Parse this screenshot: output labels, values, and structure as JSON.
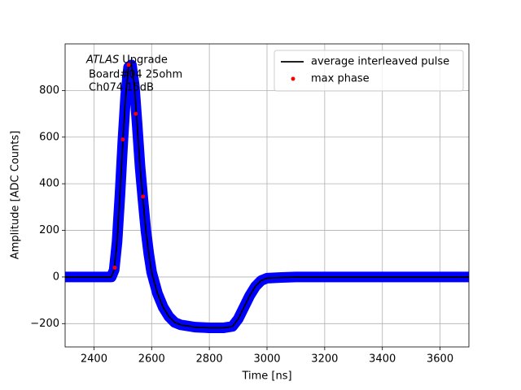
{
  "chart_data": {
    "type": "line",
    "x_label": "Time [ns]",
    "y_label": "Amplitude [ADC Counts]",
    "annotations": [
      "ATLAS",
      "Upgrade",
      "Board#04 25ohm",
      "Ch074 15dB"
    ],
    "x": [
      2300,
      2460,
      2470,
      2480,
      2490,
      2500,
      2510,
      2520,
      2530,
      2540,
      2550,
      2560,
      2570,
      2580,
      2590,
      2600,
      2620,
      2640,
      2660,
      2680,
      2700,
      2750,
      2800,
      2850,
      2880,
      2900,
      2920,
      2940,
      2960,
      2980,
      3000,
      3050,
      3100,
      3700
    ],
    "series": [
      {
        "color": "#0000ff",
        "style": "band",
        "values": [
          0,
          0,
          30,
          150,
          350,
          580,
          780,
          900,
          910,
          820,
          650,
          470,
          330,
          200,
          100,
          20,
          -70,
          -130,
          -170,
          -195,
          -205,
          -215,
          -218,
          -218,
          -212,
          -180,
          -130,
          -80,
          -40,
          -15,
          -5,
          -2,
          0,
          0
        ]
      },
      {
        "name": "average interleaved pulse",
        "color": "#000000",
        "style": "line",
        "values": [
          0,
          0,
          30,
          150,
          350,
          580,
          780,
          900,
          910,
          820,
          650,
          470,
          330,
          200,
          100,
          20,
          -70,
          -130,
          -170,
          -195,
          -205,
          -215,
          -218,
          -218,
          -212,
          -180,
          -130,
          -80,
          -40,
          -15,
          -5,
          -2,
          0,
          0
        ]
      },
      {
        "name": "max phase",
        "color": "#ff0000",
        "style": "dot",
        "x": [
          2472,
          2500,
          2520,
          2545,
          2570
        ],
        "values": [
          40,
          590,
          910,
          700,
          345
        ]
      }
    ],
    "xlim": [
      2300,
      3700
    ],
    "ylim": [
      -300,
      1000
    ],
    "xticks": [
      2400,
      2600,
      2800,
      3000,
      3200,
      3400,
      3600
    ],
    "yticks": [
      -200,
      0,
      200,
      400,
      600,
      800
    ],
    "grid": true,
    "legend": "upper right"
  }
}
